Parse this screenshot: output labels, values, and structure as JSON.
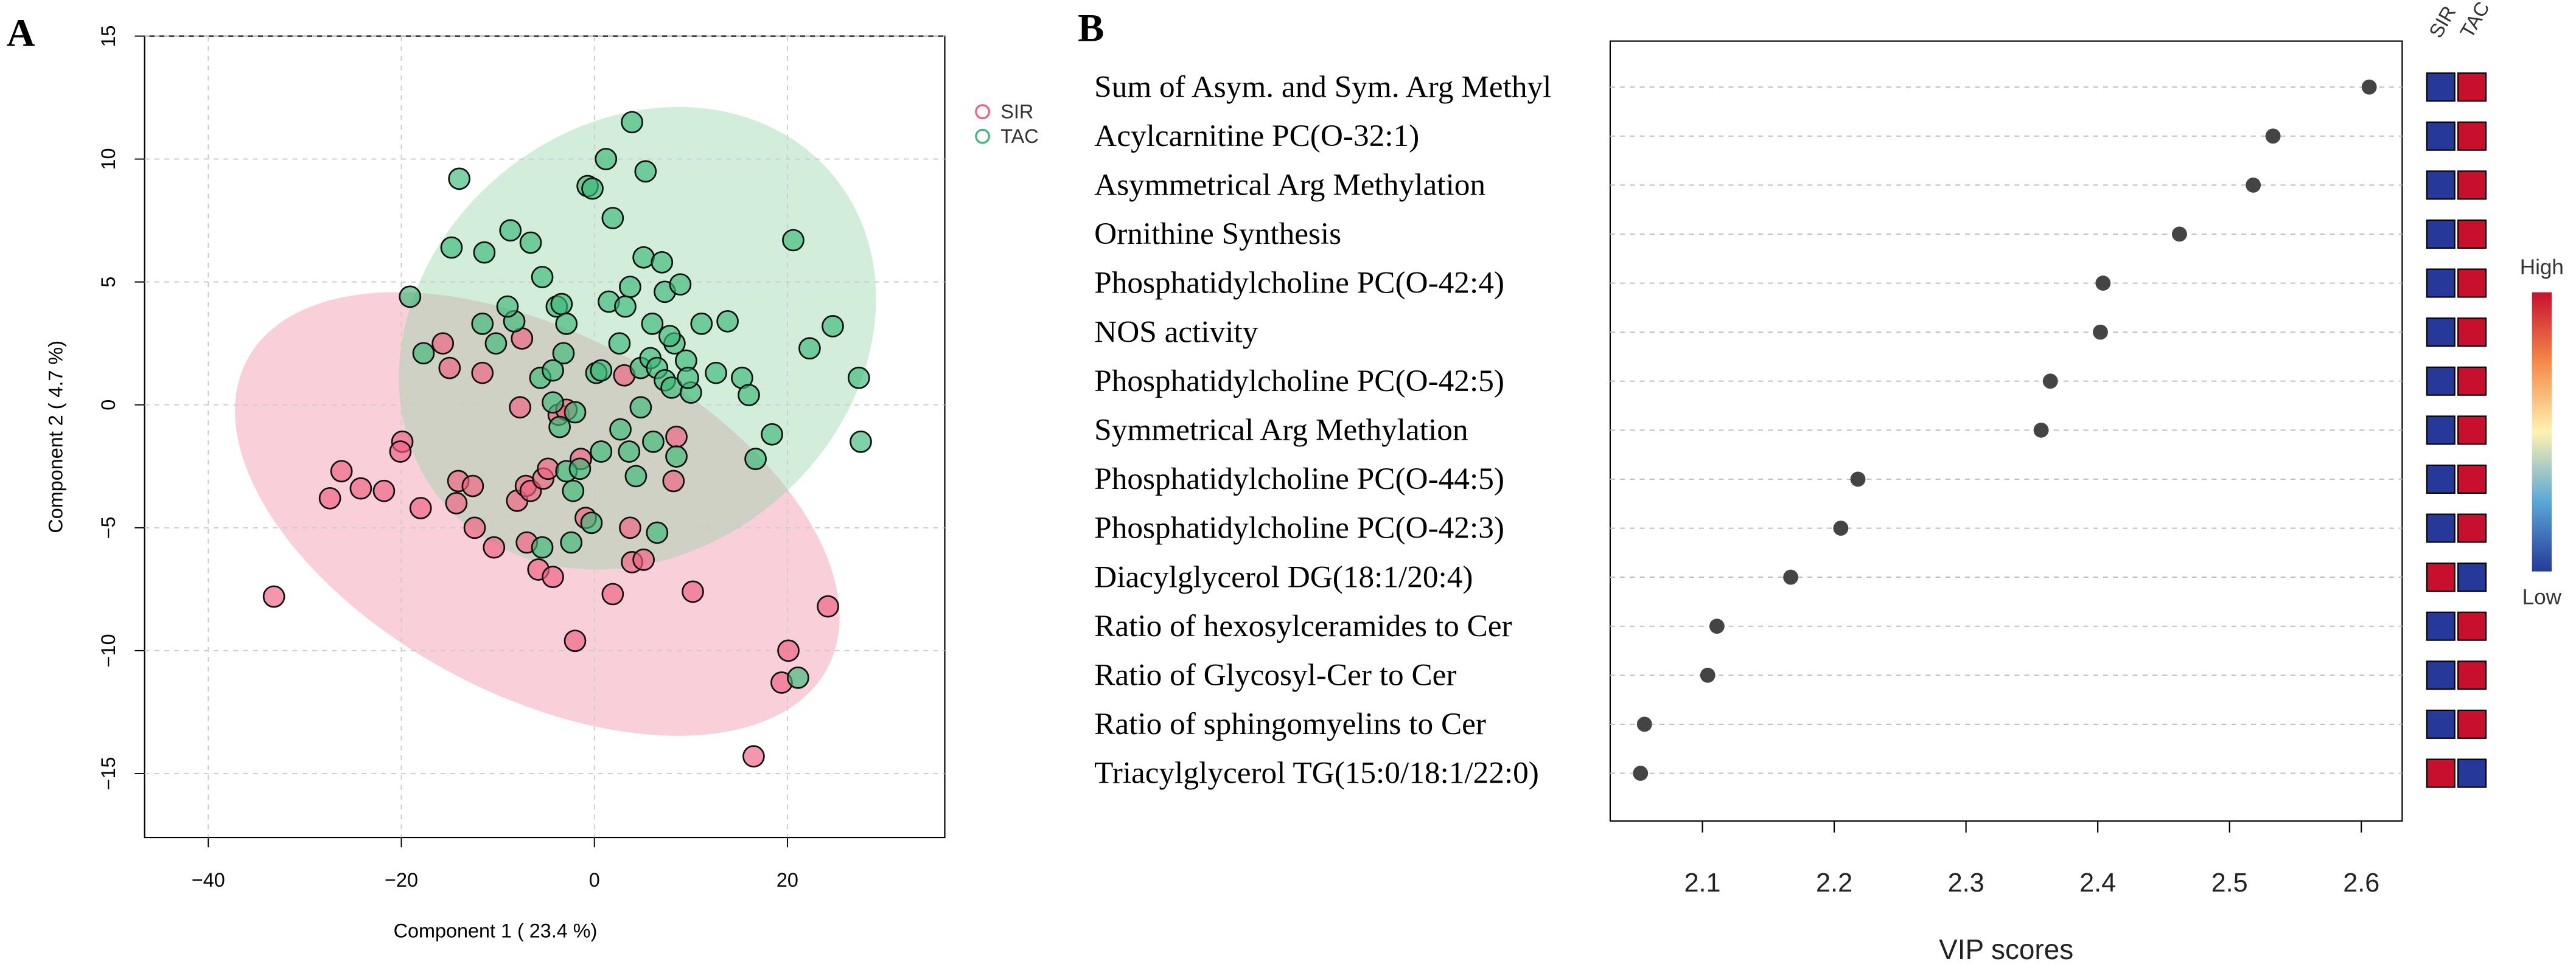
{
  "chart_data": [
    {
      "type": "scatter",
      "panel_label": "A",
      "x_label": "Component 1 ( 23.4 %)",
      "y_label": "Component 2 ( 4.7 %)",
      "xlim": [
        -46.6,
        36.3
      ],
      "ylim": [
        -17.6,
        15.0
      ],
      "xticks": [
        {
          "value": -40,
          "label": "−40"
        },
        {
          "value": -20,
          "label": "−20"
        },
        0,
        20
      ],
      "yticks": [
        {
          "value": -15,
          "label": "−15"
        },
        {
          "value": -10,
          "label": "−10"
        },
        {
          "value": -5,
          "label": "−5"
        },
        0,
        5,
        10,
        15
      ],
      "grid": true,
      "legend": "right",
      "series": [
        {
          "name": "SIR",
          "color": "#f0607f",
          "x": [
            -33.2,
            -27.4,
            -26.2,
            -24.2,
            -21.8,
            -19.9,
            -20.1,
            -18.0,
            -15.7,
            -15.0,
            -14.3,
            -14.1,
            -12.6,
            -12.4,
            -11.6,
            -10.4,
            -8.0,
            -7.7,
            -7.1,
            -7.0,
            -6.6,
            -5.8,
            -5.3,
            -4.8,
            -4.3,
            -3.7,
            -2.0,
            -0.9,
            1.9,
            3.1,
            3.7,
            3.9,
            5.1,
            8.2,
            8.5,
            10.2,
            16.5,
            19.4,
            20.1,
            24.2,
            -7.5,
            -1.4,
            -2.9
          ],
          "values": [
            -7.8,
            -3.8,
            -2.7,
            -3.4,
            -3.5,
            -1.5,
            -1.9,
            -4.2,
            2.5,
            1.5,
            -4.0,
            -3.1,
            -3.3,
            -5.0,
            1.3,
            -5.8,
            -3.9,
            -0.1,
            -3.3,
            -5.6,
            -3.5,
            -6.7,
            -3.0,
            -2.6,
            -7.0,
            -0.4,
            -9.6,
            -4.6,
            -7.7,
            1.2,
            -5.0,
            -6.4,
            -6.3,
            -3.1,
            -1.3,
            -7.6,
            -14.3,
            -11.3,
            -10.0,
            -8.2,
            2.7,
            -2.2,
            -0.2
          ]
        },
        {
          "name": "TAC",
          "color": "#3cb878",
          "x": [
            -14.0,
            -14.8,
            -19.1,
            -11.4,
            -8.7,
            -6.6,
            -8.3,
            -11.6,
            -17.7,
            -10.2,
            -9.0,
            -5.4,
            -3.9,
            -3.4,
            -2.9,
            -3.2,
            -5.6,
            -4.3,
            -3.6,
            -2.0,
            -0.7,
            -0.2,
            1.2,
            1.9,
            3.9,
            5.3,
            5.1,
            3.7,
            1.5,
            2.6,
            0.2,
            0.7,
            4.8,
            7.0,
            7.3,
            8.9,
            8.3,
            5.8,
            6.5,
            7.3,
            8.0,
            9.5,
            10.0,
            11.1,
            12.6,
            13.8,
            15.3,
            16.0,
            16.7,
            18.4,
            20.6,
            22.3,
            24.7,
            27.4,
            27.6,
            21.1,
            -4.3,
            -2.2,
            -2.4,
            -5.4,
            -0.3,
            3.6,
            2.7,
            4.3,
            8.5,
            6.1,
            6.5,
            -2.9,
            -1.5,
            0.7,
            9.7,
            4.8,
            7.8,
            3.2,
            6.0
          ],
          "values": [
            9.2,
            6.4,
            4.4,
            6.2,
            7.1,
            6.6,
            3.4,
            3.3,
            2.1,
            2.5,
            4.0,
            5.2,
            4.0,
            4.1,
            3.3,
            2.1,
            1.1,
            0.1,
            -0.9,
            -0.3,
            8.9,
            8.8,
            10.0,
            7.6,
            11.5,
            9.5,
            6.0,
            4.8,
            4.2,
            2.5,
            1.3,
            1.4,
            1.5,
            5.8,
            4.6,
            4.9,
            2.5,
            1.9,
            1.5,
            1.0,
            0.7,
            1.8,
            0.5,
            3.3,
            1.3,
            3.4,
            1.1,
            0.4,
            -2.2,
            -1.2,
            6.7,
            2.3,
            3.2,
            1.1,
            -1.5,
            -11.1,
            1.4,
            -3.5,
            -5.6,
            -5.8,
            -4.8,
            -1.9,
            -1.0,
            -2.9,
            -2.1,
            -1.5,
            -5.2,
            -2.7,
            -2.6,
            -1.9,
            1.1,
            -0.1,
            2.8,
            4.0,
            3.3
          ]
        }
      ]
    },
    {
      "type": "dot",
      "panel_label": "B",
      "x_label": "VIP scores",
      "xlim": [
        2.03,
        2.631
      ],
      "xticks": [
        2.1,
        2.2,
        2.3,
        2.4,
        2.5,
        2.6
      ],
      "grid": true,
      "color": "#444444",
      "categories": [
        "Sum of Asym. and Sym. Arg Methyl",
        "Acylcarnitine PC(O-32:1)",
        "Asymmetrical Arg Methylation",
        "Ornithine Synthesis",
        "Phosphatidylcholine PC(O-42:4)",
        "NOS activity",
        "Phosphatidylcholine PC(O-42:5)",
        "Symmetrical Arg Methylation",
        "Phosphatidylcholine PC(O-44:5)",
        "Phosphatidylcholine PC(O-42:3)",
        "Diacylglycerol DG(18:1/20:4)",
        "Ratio of hexosylceramides to Cer",
        "Ratio of Glycosyl-Cer to Cer",
        "Ratio of sphingomyelins to Cer",
        "Triacylglycerol TG(15:0/18:1/22:0)"
      ],
      "values": [
        2.606,
        2.533,
        2.518,
        2.462,
        2.404,
        2.402,
        2.364,
        2.357,
        2.218,
        2.205,
        2.167,
        2.111,
        2.104,
        2.056,
        2.053
      ],
      "heat_columns": [
        "SIR",
        "TAC"
      ],
      "heat_colors": [
        [
          "#26399a",
          "#c8102e"
        ],
        [
          "#26399a",
          "#c8102e"
        ],
        [
          "#26399a",
          "#c8102e"
        ],
        [
          "#26399a",
          "#c8102e"
        ],
        [
          "#26399a",
          "#c8102e"
        ],
        [
          "#26399a",
          "#c8102e"
        ],
        [
          "#26399a",
          "#c8102e"
        ],
        [
          "#26399a",
          "#c8102e"
        ],
        [
          "#26399a",
          "#c8102e"
        ],
        [
          "#26399a",
          "#c8102e"
        ],
        [
          "#c8102e",
          "#26399a"
        ],
        [
          "#26399a",
          "#c8102e"
        ],
        [
          "#26399a",
          "#c8102e"
        ],
        [
          "#26399a",
          "#c8102e"
        ],
        [
          "#c8102e",
          "#26399a"
        ]
      ],
      "colorbar": {
        "high_label": "High",
        "low_label": "Low",
        "colors": [
          "#c8102e",
          "#f58a4a",
          "#fff2b0",
          "#5aa7d6",
          "#26399a"
        ]
      }
    }
  ]
}
